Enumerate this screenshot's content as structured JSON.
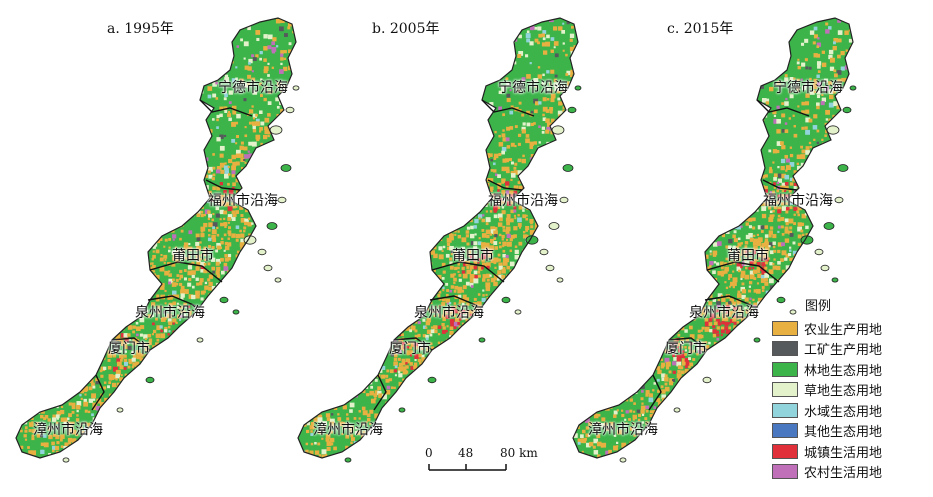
{
  "panels": [
    {
      "title": "a. 1995年",
      "labels": {
        "ningde": "宁德市沿海",
        "fuzhou": "福州市沿海",
        "putian": "莆田市",
        "quanzhou": "泉州市沿海",
        "xiamen": "厦门市",
        "zhangzhou": "漳州市沿海"
      },
      "urban_level": 0.2
    },
    {
      "title": "b. 2005年",
      "labels": {
        "ningde": "宁德市沿海",
        "fuzhou": "福州市沿海",
        "putian": "莆田市",
        "quanzhou": "泉州市沿海",
        "xiamen": "厦门市",
        "zhangzhou": "漳州市沿海"
      },
      "urban_level": 0.55
    },
    {
      "title": "c. 2015年",
      "labels": {
        "ningde": "宁德市沿海",
        "fuzhou": "福州市沿海",
        "putian": "莆田市",
        "quanzhou": "泉州市沿海",
        "xiamen": "厦门市",
        "zhangzhou": "漳州市沿海"
      },
      "urban_level": 0.85
    }
  ],
  "legend": {
    "title": "图例",
    "items": [
      {
        "label": "农业生产用地",
        "color": "#e8b040"
      },
      {
        "label": "工矿生产用地",
        "color": "#55595c"
      },
      {
        "label": "林地生态用地",
        "color": "#3cb44a"
      },
      {
        "label": "草地生态用地",
        "color": "#e4f2cc"
      },
      {
        "label": "水域生态用地",
        "color": "#92d4dc"
      },
      {
        "label": "其他生态用地",
        "color": "#4a78c0"
      },
      {
        "label": "城镇生活用地",
        "color": "#e0303a"
      },
      {
        "label": "农村生活用地",
        "color": "#c070b8"
      }
    ]
  },
  "scalebar": {
    "ticks": [
      "0",
      "48",
      "80 km"
    ]
  }
}
